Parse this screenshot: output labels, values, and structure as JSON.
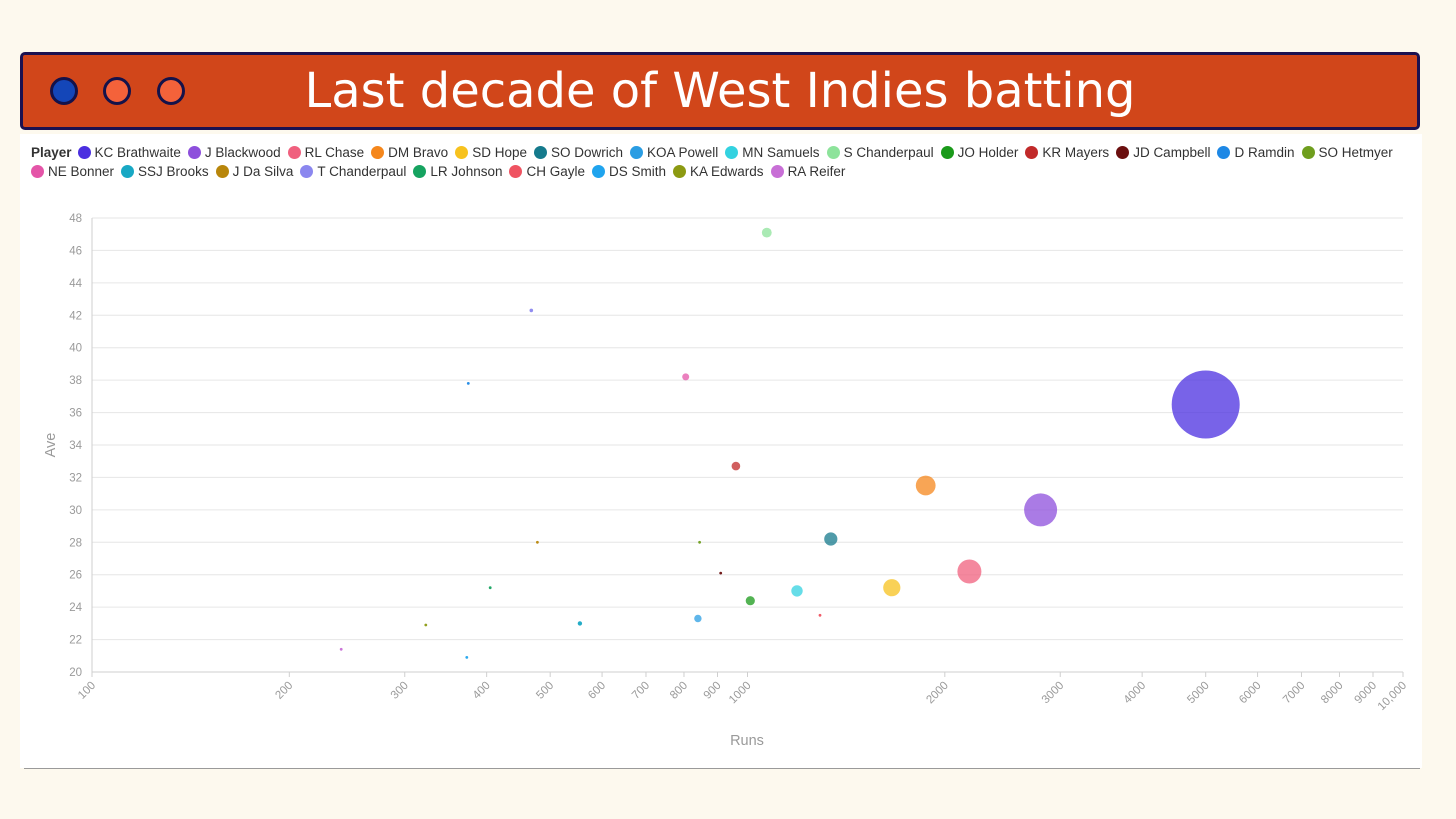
{
  "window": {
    "buttons": [
      {
        "name": "control-1",
        "color": "#1446b8"
      },
      {
        "name": "control-2",
        "color": "#f4623a"
      },
      {
        "name": "control-3",
        "color": "#f4623a"
      }
    ]
  },
  "chart_data": {
    "type": "scatter",
    "title": "Last decade of West Indies batting",
    "legend_title": "Player",
    "legend_position": "top",
    "xlabel": "Runs",
    "ylabel": "Ave",
    "x_scale": "log",
    "xlim": [
      100,
      10000
    ],
    "ylim": [
      20,
      48
    ],
    "grid": true,
    "x_ticks": [
      100,
      200,
      300,
      400,
      500,
      600,
      700,
      800,
      900,
      1000,
      2000,
      3000,
      4000,
      5000,
      6000,
      7000,
      8000,
      9000,
      10000
    ],
    "x_tick_labels": [
      "100",
      "200",
      "300",
      "400",
      "500",
      "600",
      "700",
      "800",
      "900",
      "1000",
      "2000",
      "3000",
      "4000",
      "5000",
      "6000",
      "7000",
      "8000",
      "9000",
      "10,000"
    ],
    "y_ticks": [
      20,
      22,
      24,
      26,
      28,
      30,
      32,
      34,
      36,
      38,
      40,
      42,
      44,
      46,
      48
    ],
    "series": [
      {
        "name": "KC Brathwaite",
        "color": "#4b2fe0",
        "x": 5000,
        "y": 36.5
      },
      {
        "name": "J Blackwood",
        "color": "#8d4fdc",
        "x": 2800,
        "y": 30.0
      },
      {
        "name": "RL Chase",
        "color": "#f0607e",
        "x": 2180,
        "y": 26.2
      },
      {
        "name": "DM Bravo",
        "color": "#f5871c",
        "x": 1870,
        "y": 31.5
      },
      {
        "name": "SD Hope",
        "color": "#f7c21e",
        "x": 1660,
        "y": 25.2
      },
      {
        "name": "SO Dowrich",
        "color": "#157a8c",
        "x": 1340,
        "y": 28.2
      },
      {
        "name": "KOA Powell",
        "color": "#2a9de3",
        "x": 840,
        "y": 23.3
      },
      {
        "name": "MN Samuels",
        "color": "#33d2e0",
        "x": 1190,
        "y": 25.0
      },
      {
        "name": "S Chanderpaul",
        "color": "#8de39b",
        "x": 1070,
        "y": 47.1
      },
      {
        "name": "JO Holder",
        "color": "#1a9a1a",
        "x": 1010,
        "y": 24.4
      },
      {
        "name": "KR Mayers",
        "color": "#c12a2a",
        "x": 960,
        "y": 32.7
      },
      {
        "name": "JD Campbell",
        "color": "#6b0f0f",
        "x": 910,
        "y": 26.1
      },
      {
        "name": "D Ramdin",
        "color": "#1e88e5",
        "x": 375,
        "y": 37.8
      },
      {
        "name": "SO Hetmyer",
        "color": "#6f9e1e",
        "x": 845,
        "y": 28.0
      },
      {
        "name": "NE Bonner",
        "color": "#e455a8",
        "x": 805,
        "y": 38.2
      },
      {
        "name": "SSJ Brooks",
        "color": "#18a8c4",
        "x": 555,
        "y": 23.0
      },
      {
        "name": "J Da Silva",
        "color": "#b8860b",
        "x": 478,
        "y": 28.0
      },
      {
        "name": "T Chanderpaul",
        "color": "#8b87ef",
        "x": 468,
        "y": 42.3
      },
      {
        "name": "LR Johnson",
        "color": "#16a360",
        "x": 405,
        "y": 25.2
      },
      {
        "name": "CH Gayle",
        "color": "#ef5361",
        "x": 1290,
        "y": 23.5
      },
      {
        "name": "DS Smith",
        "color": "#20a4ee",
        "x": 373,
        "y": 20.9
      },
      {
        "name": "KA Edwards",
        "color": "#8c9a12",
        "x": 323,
        "y": 22.9
      },
      {
        "name": "RA Reifer",
        "color": "#c86fd6",
        "x": 240,
        "y": 21.4
      }
    ]
  }
}
